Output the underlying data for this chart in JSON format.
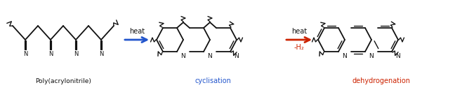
{
  "bg_color": "#ffffff",
  "black": "#111111",
  "blue": "#2255cc",
  "red": "#cc2200",
  "label_pan": "Poly(acrylonitrile)",
  "label_cycl": "cyclisation",
  "label_dehyd": "dehydrogenation",
  "heat": "heat",
  "minus_h2": "-H₂",
  "figsize": [
    6.48,
    1.29
  ],
  "dpi": 100
}
